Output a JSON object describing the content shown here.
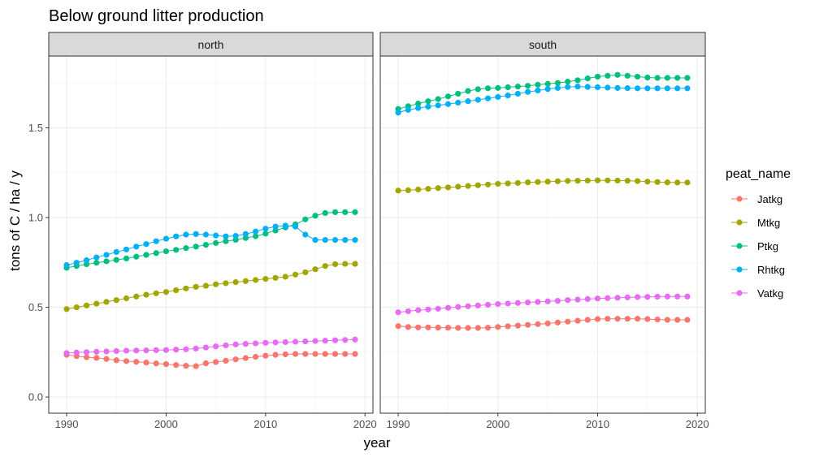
{
  "chart_data": {
    "type": "line",
    "title": "Below ground litter production",
    "xlabel": "year",
    "ylabel": "tons of C / ha / y",
    "x_ticks": [
      "1990",
      "2000",
      "2010",
      "2020"
    ],
    "y_ticks": [
      "0.0",
      "0.5",
      "1.0",
      "1.5"
    ],
    "xlim": [
      1988.2,
      2020.8
    ],
    "ylim": [
      -0.09,
      1.9
    ],
    "grid": true,
    "legend_title": "peat_name",
    "legend_position": "right",
    "facets": [
      {
        "name": "north",
        "series": [
          {
            "name": "Jatkg",
            "color": "#F8766D",
            "x_start": 1990,
            "values": [
              0.235,
              0.228,
              0.222,
              0.218,
              0.212,
              0.205,
              0.2,
              0.196,
              0.192,
              0.187,
              0.183,
              0.178,
              0.174,
              0.172,
              0.188,
              0.195,
              0.202,
              0.21,
              0.217,
              0.224,
              0.23,
              0.235,
              0.238,
              0.24,
              0.24,
              0.24,
              0.24,
              0.24,
              0.24,
              0.24
            ]
          },
          {
            "name": "Mtkg",
            "color": "#A3A500",
            "x_start": 1990,
            "values": [
              0.49,
              0.5,
              0.51,
              0.52,
              0.53,
              0.54,
              0.55,
              0.56,
              0.57,
              0.578,
              0.585,
              0.595,
              0.605,
              0.614,
              0.62,
              0.628,
              0.634,
              0.64,
              0.646,
              0.652,
              0.658,
              0.664,
              0.67,
              0.682,
              0.695,
              0.712,
              0.73,
              0.74,
              0.742,
              0.742
            ]
          },
          {
            "name": "Ptkg",
            "color": "#00BF7D",
            "x_start": 1990,
            "values": [
              0.72,
              0.73,
              0.74,
              0.748,
              0.756,
              0.764,
              0.772,
              0.782,
              0.792,
              0.802,
              0.812,
              0.82,
              0.83,
              0.838,
              0.848,
              0.858,
              0.868,
              0.876,
              0.886,
              0.896,
              0.91,
              0.928,
              0.945,
              0.962,
              0.99,
              1.01,
              1.025,
              1.03,
              1.03,
              1.03
            ]
          },
          {
            "name": "Rhtkg",
            "color": "#00B0F6",
            "x_start": 1990,
            "values": [
              0.735,
              0.748,
              0.762,
              0.778,
              0.792,
              0.808,
              0.822,
              0.838,
              0.852,
              0.868,
              0.882,
              0.895,
              0.905,
              0.908,
              0.905,
              0.9,
              0.895,
              0.898,
              0.908,
              0.922,
              0.938,
              0.95,
              0.955,
              0.95,
              0.905,
              0.875,
              0.875,
              0.875,
              0.875,
              0.875
            ]
          },
          {
            "name": "Vatkg",
            "color": "#E76BF3",
            "x_start": 1990,
            "values": [
              0.245,
              0.248,
              0.25,
              0.252,
              0.254,
              0.256,
              0.258,
              0.259,
              0.26,
              0.261,
              0.262,
              0.264,
              0.266,
              0.27,
              0.276,
              0.282,
              0.288,
              0.293,
              0.296,
              0.299,
              0.302,
              0.304,
              0.306,
              0.308,
              0.31,
              0.312,
              0.314,
              0.316,
              0.318,
              0.32
            ]
          }
        ]
      },
      {
        "name": "south",
        "series": [
          {
            "name": "Jatkg",
            "color": "#F8766D",
            "x_start": 1990,
            "values": [
              0.395,
              0.39,
              0.388,
              0.388,
              0.387,
              0.386,
              0.385,
              0.385,
              0.385,
              0.386,
              0.39,
              0.394,
              0.398,
              0.402,
              0.406,
              0.41,
              0.415,
              0.42,
              0.425,
              0.43,
              0.434,
              0.436,
              0.436,
              0.436,
              0.436,
              0.434,
              0.432,
              0.43,
              0.43,
              0.43
            ]
          },
          {
            "name": "Mtkg",
            "color": "#A3A500",
            "x_start": 1990,
            "values": [
              1.15,
              1.152,
              1.156,
              1.16,
              1.164,
              1.168,
              1.172,
              1.176,
              1.18,
              1.184,
              1.188,
              1.19,
              1.193,
              1.196,
              1.198,
              1.2,
              1.202,
              1.204,
              1.205,
              1.206,
              1.207,
              1.207,
              1.206,
              1.205,
              1.203,
              1.2,
              1.198,
              1.196,
              1.195,
              1.195
            ]
          },
          {
            "name": "Ptkg",
            "color": "#00BF7D",
            "x_start": 1990,
            "values": [
              1.605,
              1.62,
              1.635,
              1.648,
              1.66,
              1.675,
              1.69,
              1.705,
              1.715,
              1.72,
              1.722,
              1.726,
              1.73,
              1.734,
              1.74,
              1.745,
              1.75,
              1.757,
              1.765,
              1.775,
              1.785,
              1.79,
              1.795,
              1.79,
              1.785,
              1.78,
              1.778,
              1.778,
              1.778,
              1.778
            ]
          },
          {
            "name": "Rhtkg",
            "color": "#00B0F6",
            "x_start": 1990,
            "values": [
              1.585,
              1.6,
              1.61,
              1.618,
              1.625,
              1.632,
              1.64,
              1.648,
              1.656,
              1.664,
              1.672,
              1.68,
              1.69,
              1.7,
              1.708,
              1.716,
              1.722,
              1.727,
              1.73,
              1.728,
              1.726,
              1.724,
              1.722,
              1.721,
              1.72,
              1.72,
              1.72,
              1.72,
              1.72,
              1.72
            ]
          },
          {
            "name": "Vatkg",
            "color": "#E76BF3",
            "x_start": 1990,
            "values": [
              0.472,
              0.478,
              0.484,
              0.488,
              0.492,
              0.497,
              0.502,
              0.506,
              0.51,
              0.514,
              0.518,
              0.521,
              0.524,
              0.527,
              0.53,
              0.533,
              0.536,
              0.54,
              0.543,
              0.546,
              0.549,
              0.551,
              0.553,
              0.555,
              0.557,
              0.558,
              0.559,
              0.56,
              0.56,
              0.56
            ]
          }
        ]
      }
    ]
  }
}
